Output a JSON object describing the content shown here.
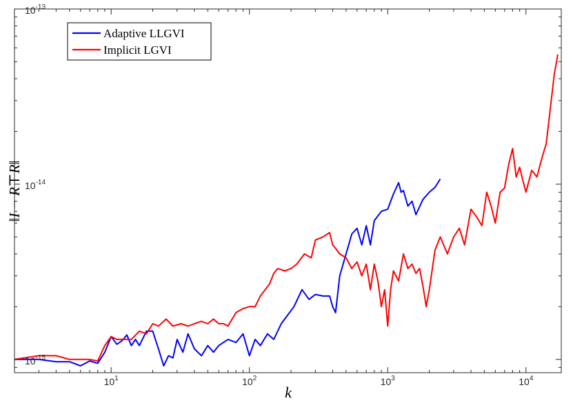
{
  "chart_data": {
    "type": "line",
    "xlabel": "k",
    "ylabel": "‖I − R⊤R‖",
    "xscale": "log",
    "yscale": "log",
    "xlim": [
      2,
      18000
    ],
    "ylim": [
      8.4e-16,
      1e-13
    ],
    "x_ticks": [
      {
        "value": 10,
        "base": "10",
        "exp": "1"
      },
      {
        "value": 100,
        "base": "10",
        "exp": "2"
      },
      {
        "value": 1000,
        "base": "10",
        "exp": "3"
      },
      {
        "value": 10000,
        "base": "10",
        "exp": "4"
      }
    ],
    "y_ticks": [
      {
        "value": 1e-15,
        "base": "10",
        "exp": "-15"
      },
      {
        "value": 1e-14,
        "base": "10",
        "exp": "-14"
      },
      {
        "value": 1e-13,
        "base": "10",
        "exp": "-13"
      }
    ],
    "grid": false,
    "legend_position": "top-left",
    "series": [
      {
        "name": "Adaptive LLGVI",
        "color": "#0000ff",
        "x": [
          2,
          3,
          4,
          5,
          6,
          7,
          8,
          9,
          10,
          11,
          12,
          13,
          14,
          15,
          16,
          18,
          20,
          22,
          24,
          26,
          28,
          30,
          33,
          36,
          40,
          45,
          50,
          55,
          60,
          70,
          80,
          90,
          100,
          110,
          120,
          135,
          150,
          170,
          190,
          210,
          240,
          270,
          300,
          340,
          380,
          400,
          420,
          450,
          500,
          550,
          600,
          650,
          700,
          750,
          800,
          900,
          1000,
          1100,
          1200,
          1250,
          1300,
          1400,
          1500,
          1600,
          1800,
          2000,
          2200,
          2400
        ],
        "y": [
          1e-15,
          1e-15,
          9.7e-16,
          9.7e-16,
          9.2e-16,
          9.8e-16,
          9.5e-16,
          1.1e-15,
          1.35e-15,
          1.22e-15,
          1.28e-15,
          1.38e-15,
          1.2e-15,
          1.3e-15,
          1.2e-15,
          1.45e-15,
          1.45e-15,
          1.15e-15,
          9.2e-16,
          1.05e-15,
          1.02e-15,
          1.3e-15,
          1.1e-15,
          1.4e-15,
          1.15e-15,
          1.05e-15,
          1.2e-15,
          1.1e-15,
          1.2e-15,
          1.3e-15,
          1.25e-15,
          1.4e-15,
          1.05e-15,
          1.3e-15,
          1.2e-15,
          1.4e-15,
          1.3e-15,
          1.6e-15,
          1.8e-15,
          2e-15,
          2.5e-15,
          2.2e-15,
          2.35e-15,
          2.3e-15,
          2.3e-15,
          2e-15,
          1.85e-15,
          3e-15,
          4e-15,
          5.2e-15,
          5.6e-15,
          4.5e-15,
          5.8e-15,
          4.5e-15,
          6.2e-15,
          7e-15,
          7.2e-15,
          8.8e-15,
          1.02e-14,
          9e-15,
          9.2e-15,
          7.5e-15,
          8e-15,
          6.7e-15,
          8.2e-15,
          9e-15,
          9.6e-15,
          1.07e-14
        ]
      },
      {
        "name": "Implicit LGVI",
        "color": "#ff0000",
        "x": [
          2,
          3,
          4,
          5,
          6,
          7,
          8,
          9,
          10,
          11,
          12,
          14,
          16,
          18,
          20,
          22,
          25,
          28,
          32,
          36,
          40,
          45,
          50,
          55,
          60,
          65,
          70,
          75,
          80,
          90,
          100,
          110,
          120,
          130,
          140,
          150,
          160,
          180,
          200,
          220,
          250,
          280,
          300,
          340,
          380,
          400,
          420,
          450,
          500,
          550,
          600,
          650,
          700,
          750,
          800,
          850,
          900,
          950,
          1000,
          1050,
          1100,
          1200,
          1300,
          1400,
          1500,
          1600,
          1700,
          1800,
          1900,
          2000,
          2200,
          2400,
          2700,
          3000,
          3300,
          3600,
          4000,
          4400,
          4800,
          5200,
          5600,
          6000,
          6500,
          7000,
          7500,
          8000,
          8500,
          9000,
          9500,
          10000,
          11000,
          12000,
          13000,
          14000,
          15000,
          16000,
          17000
        ],
        "y": [
          1e-15,
          1.05e-15,
          1.05e-15,
          1e-15,
          1e-15,
          1e-15,
          9.8e-16,
          1.2e-15,
          1.35e-15,
          1.3e-15,
          1.3e-15,
          1.3e-15,
          1.45e-15,
          1.4e-15,
          1.6e-15,
          1.55e-15,
          1.7e-15,
          1.55e-15,
          1.6e-15,
          1.55e-15,
          1.6e-15,
          1.65e-15,
          1.6e-15,
          1.7e-15,
          1.6e-15,
          1.6e-15,
          1.55e-15,
          1.7e-15,
          1.85e-15,
          1.95e-15,
          2e-15,
          2e-15,
          2.3e-15,
          2.5e-15,
          2.7e-15,
          3.1e-15,
          3.3e-15,
          3.2e-15,
          3.3e-15,
          3.5e-15,
          4e-15,
          3.8e-15,
          4.8e-15,
          5e-15,
          5.3e-15,
          4.5e-15,
          4.3e-15,
          4e-15,
          3.8e-15,
          3.3e-15,
          3.6e-15,
          3e-15,
          3.5e-15,
          2.5e-15,
          3.5e-15,
          2.8e-15,
          2e-15,
          2.5e-15,
          1.55e-15,
          2.5e-15,
          3.2e-15,
          2.8e-15,
          4e-15,
          3.3e-15,
          3.5e-15,
          3.1e-15,
          3.3e-15,
          2.6e-15,
          2e-15,
          2.5e-15,
          4.2e-15,
          5e-15,
          4e-15,
          5e-15,
          5.6e-15,
          4.5e-15,
          7.2e-15,
          6.5e-15,
          5.8e-15,
          9e-15,
          7.5e-15,
          6e-15,
          9e-15,
          9.5e-15,
          1.3e-14,
          1.6e-14,
          1.1e-14,
          1.25e-14,
          1.05e-14,
          9e-15,
          1.2e-14,
          1.1e-14,
          1.4e-14,
          1.7e-14,
          2.7e-14,
          4.2e-14,
          5.5e-14
        ]
      }
    ]
  }
}
